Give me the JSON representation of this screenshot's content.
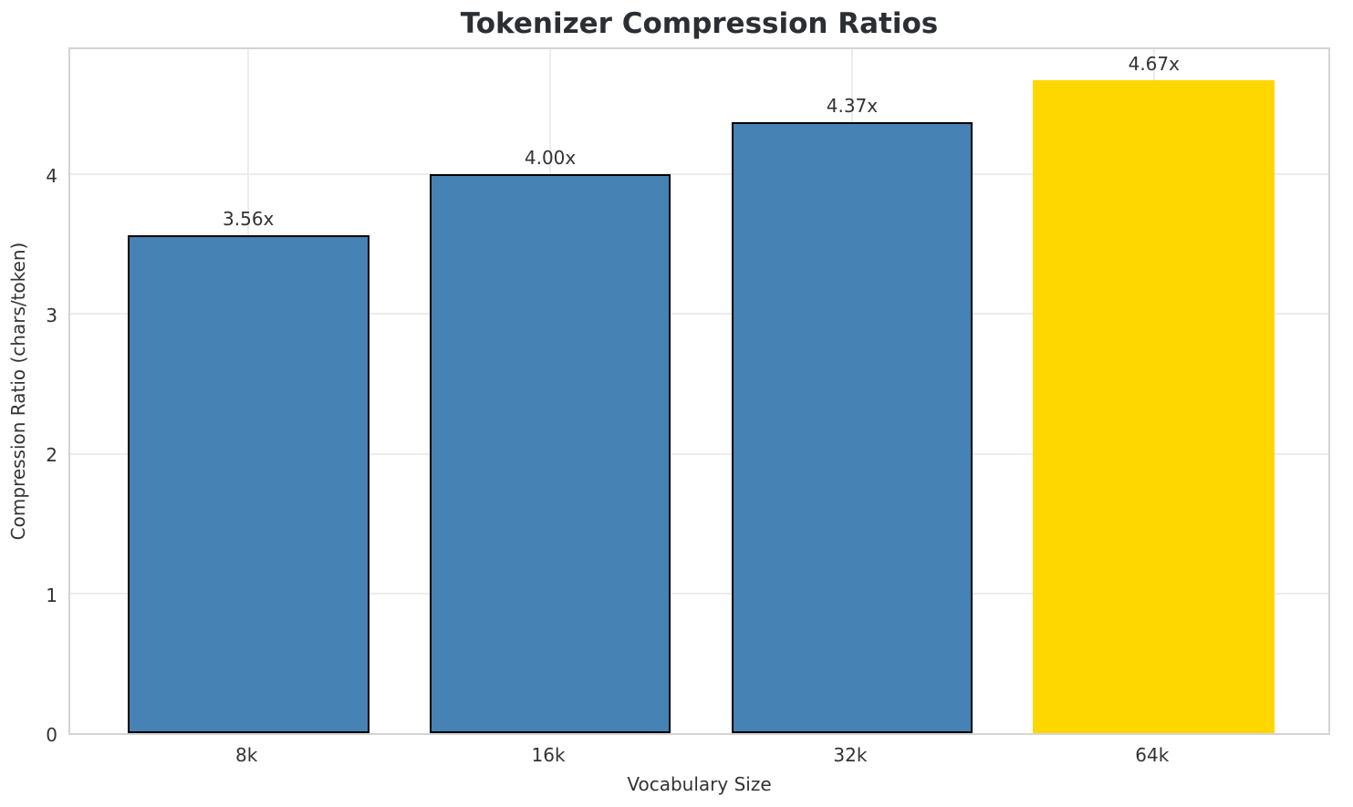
{
  "chart_data": {
    "type": "bar",
    "title": "Tokenizer Compression Ratios",
    "xlabel": "Vocabulary Size",
    "ylabel": "Compression Ratio (chars/token)",
    "categories": [
      "8k",
      "16k",
      "32k",
      "64k"
    ],
    "values": [
      3.56,
      4.0,
      4.37,
      4.67
    ],
    "bar_labels": [
      "3.56x",
      "4.00x",
      "4.37x",
      "4.67x"
    ],
    "yticks": [
      0,
      1,
      2,
      3,
      4
    ],
    "ylim": [
      0,
      4.92
    ],
    "grid": true,
    "legend": "none",
    "highlight_index": 3,
    "colors": {
      "bar": "#4682b4",
      "highlight_bar": "#ffd700",
      "bar_edge": "#000000",
      "grid_line": "#ececec",
      "spine": "#d4d4d4",
      "text": "#333333",
      "title_text": "#2b2e33",
      "background": "#ffffff"
    }
  }
}
